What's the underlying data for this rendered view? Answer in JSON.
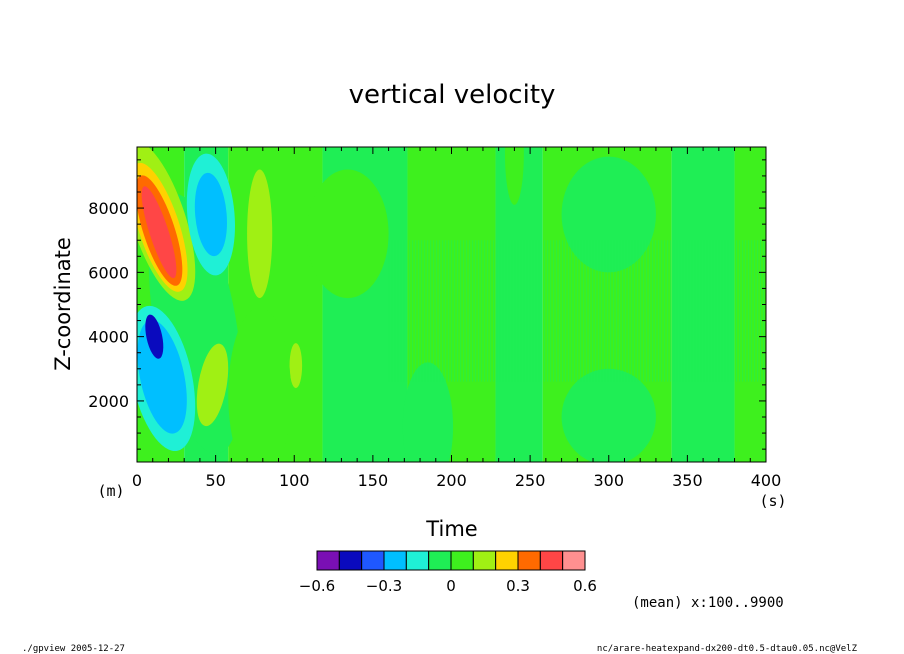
{
  "chart_data": {
    "type": "heatmap",
    "title": "vertical velocity",
    "xlabel": "Time",
    "ylabel": "Z-coordinate",
    "x_unit": "(s)",
    "y_unit": "(m)",
    "xlim": [
      0,
      400
    ],
    "ylim": [
      100,
      9900
    ],
    "xticks": [
      0,
      50,
      100,
      150,
      200,
      250,
      300,
      350,
      400
    ],
    "yticks": [
      2000,
      4000,
      6000,
      8000
    ],
    "colorbar": {
      "levels": [
        -0.6,
        -0.5,
        -0.4,
        -0.3,
        -0.2,
        -0.1,
        0,
        0.1,
        0.2,
        0.3,
        0.4,
        0.5,
        0.6
      ],
      "colors": [
        "#7a0fb4",
        "#0a0abe",
        "#1f58ff",
        "#00bfff",
        "#1ff0d6",
        "#1fee55",
        "#3ef01e",
        "#a0f014",
        "#ffd200",
        "#ff6a00",
        "#ff4646",
        "#ff9090"
      ],
      "tick_labels": [
        "−0.6",
        "−0.3",
        "0",
        "0.3",
        "0.6"
      ],
      "tick_values": [
        -0.6,
        -0.3,
        0,
        0.3,
        0.6
      ]
    },
    "regions": [
      {
        "kind": "band",
        "x0": 0,
        "x1": 30,
        "value": 0.05
      },
      {
        "kind": "band",
        "x0": 30,
        "x1": 58,
        "value": -0.05
      },
      {
        "kind": "band",
        "x0": 58,
        "x1": 118,
        "value": 0.05
      },
      {
        "kind": "band",
        "x0": 118,
        "x1": 172,
        "value": -0.05
      },
      {
        "kind": "band",
        "x0": 172,
        "x1": 228,
        "value": 0.05
      },
      {
        "kind": "band",
        "x0": 228,
        "x1": 258,
        "value": -0.05
      },
      {
        "kind": "band",
        "x0": 258,
        "x1": 340,
        "value": 0.05
      },
      {
        "kind": "band",
        "x0": 340,
        "x1": 380,
        "value": -0.05
      },
      {
        "kind": "band",
        "x0": 380,
        "x1": 400,
        "value": 0.05
      },
      {
        "kind": "blob",
        "cx": 37,
        "cy": 4400,
        "rx": 26,
        "ry": 4100,
        "rot": -10,
        "value": -0.05
      },
      {
        "kind": "blob",
        "cx": 14,
        "cy": 7600,
        "rx": 17,
        "ry": 2600,
        "rot": -18,
        "value": 0.15
      },
      {
        "kind": "blob",
        "cx": 14,
        "cy": 7400,
        "rx": 13,
        "ry": 2100,
        "rot": -18,
        "value": 0.25
      },
      {
        "kind": "blob",
        "cx": 14,
        "cy": 7300,
        "rx": 10,
        "ry": 1800,
        "rot": -18,
        "value": 0.35
      },
      {
        "kind": "blob",
        "cx": 14,
        "cy": 7250,
        "rx": 6,
        "ry": 1500,
        "rot": -18,
        "value": 0.45
      },
      {
        "kind": "blob",
        "cx": 16,
        "cy": 2700,
        "rx": 19,
        "ry": 2300,
        "rot": -12,
        "value": -0.15
      },
      {
        "kind": "blob",
        "cx": 16,
        "cy": 2750,
        "rx": 14,
        "ry": 1800,
        "rot": -12,
        "value": -0.25
      },
      {
        "kind": "blob",
        "cx": 11,
        "cy": 4000,
        "rx": 5,
        "ry": 700,
        "rot": -12,
        "value": -0.45
      },
      {
        "kind": "blob",
        "cx": 47,
        "cy": 7800,
        "rx": 15,
        "ry": 1900,
        "rot": -5,
        "value": -0.15
      },
      {
        "kind": "blob",
        "cx": 47,
        "cy": 7800,
        "rx": 10,
        "ry": 1300,
        "rot": -5,
        "value": -0.25
      },
      {
        "kind": "blob",
        "cx": 48,
        "cy": 2500,
        "rx": 9,
        "ry": 1300,
        "rot": 10,
        "value": 0.15
      },
      {
        "kind": "blob",
        "cx": 78,
        "cy": 7200,
        "rx": 8,
        "ry": 2000,
        "rot": 0,
        "value": 0.15
      },
      {
        "kind": "blob",
        "cx": 101,
        "cy": 3100,
        "rx": 4,
        "ry": 700,
        "rot": 0,
        "value": 0.15
      },
      {
        "kind": "blob",
        "cx": 78,
        "cy": 2200,
        "rx": 20,
        "ry": 2700,
        "rot": 0,
        "value": 0.05
      },
      {
        "kind": "blob",
        "cx": 134,
        "cy": 7200,
        "rx": 26,
        "ry": 2000,
        "rot": 0,
        "value": 0.05
      },
      {
        "kind": "blob",
        "cx": 185,
        "cy": 1200,
        "rx": 16,
        "ry": 2000,
        "rot": 0,
        "value": -0.05
      },
      {
        "kind": "blob",
        "cx": 240,
        "cy": 9700,
        "rx": 6,
        "ry": 1600,
        "rot": 0,
        "value": 0.05
      },
      {
        "kind": "blob",
        "cx": 300,
        "cy": 7800,
        "rx": 30,
        "ry": 1800,
        "rot": 0,
        "value": -0.05
      },
      {
        "kind": "blob",
        "cx": 300,
        "cy": 1500,
        "rx": 30,
        "ry": 1500,
        "rot": 0,
        "value": -0.05
      },
      {
        "kind": "stripes",
        "x0": 160,
        "x1": 400,
        "y0": 2600,
        "y1": 7000,
        "value": -0.05
      }
    ]
  },
  "footer": {
    "mean_note": "(mean) x:100..9900",
    "left_note": "./gpview  2005-12-27",
    "right_note": "nc/arare-heatexpand-dx200-dt0.5-dtau0.05.nc@VelZ"
  }
}
